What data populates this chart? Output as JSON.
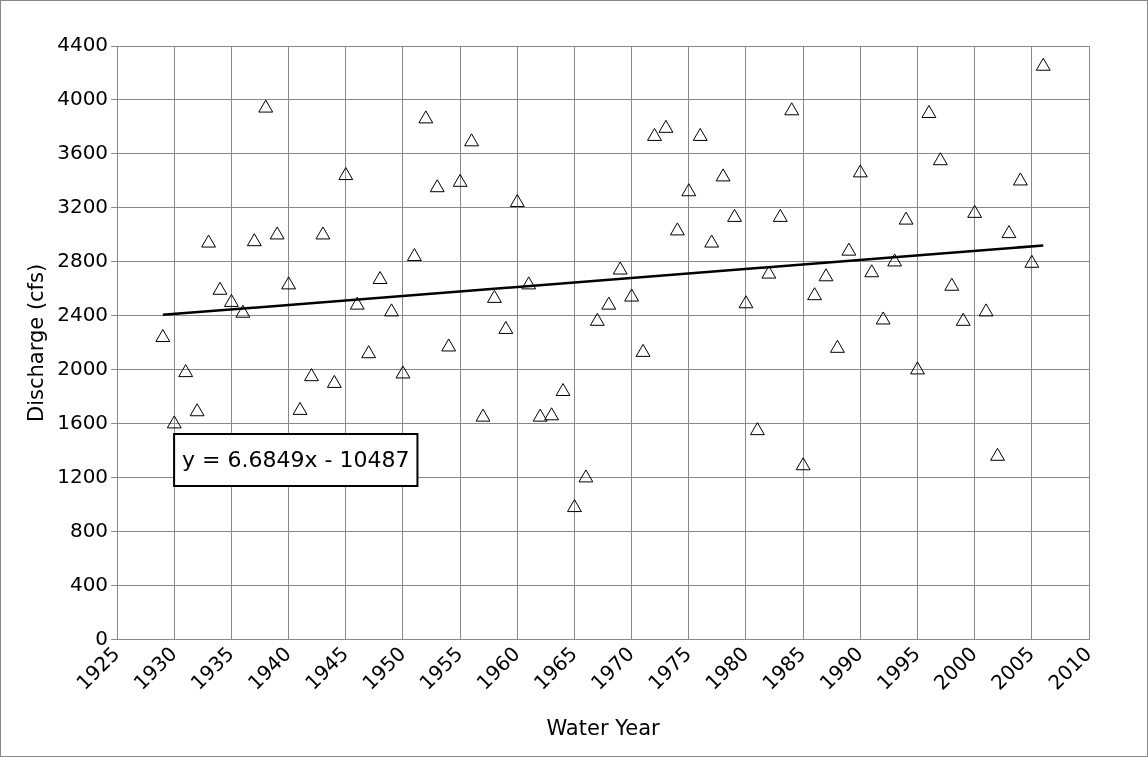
{
  "chart_data": {
    "type": "scatter",
    "xlabel": "Water Year",
    "ylabel": "Discharge (cfs)",
    "xlim": [
      1925,
      2010
    ],
    "xticks": [
      1925,
      1930,
      1935,
      1940,
      1945,
      1950,
      1955,
      1960,
      1965,
      1970,
      1975,
      1980,
      1985,
      1990,
      1995,
      2000,
      2005,
      2010
    ],
    "ylim": [
      0,
      4400
    ],
    "yticks": [
      0,
      400,
      800,
      1200,
      1600,
      2000,
      2400,
      2800,
      3200,
      3600,
      4000,
      4400
    ],
    "grid": true,
    "legend": false,
    "marker": "triangle",
    "annotations": [
      "y = 6.6849x - 10487"
    ],
    "series": [
      {
        "color": "#000000",
        "x": [
          1929,
          1930,
          1931,
          1932,
          1933,
          1934,
          1935,
          1936,
          1937,
          1938,
          1939,
          1940,
          1941,
          1942,
          1943,
          1944,
          1945,
          1946,
          1947,
          1948,
          1949,
          1950,
          1951,
          1952,
          1953,
          1954,
          1955,
          1956,
          1957,
          1958,
          1959,
          1960,
          1961,
          1962,
          1963,
          1964,
          1965,
          1966,
          1967,
          1968,
          1969,
          1970,
          1971,
          1972,
          1973,
          1974,
          1975,
          1976,
          1977,
          1978,
          1979,
          1980,
          1981,
          1982,
          1983,
          1984,
          1985,
          1986,
          1987,
          1988,
          1989,
          1990,
          1991,
          1992,
          1993,
          1994,
          1995,
          1996,
          1997,
          1998,
          1999,
          2000,
          2001,
          2002,
          2003,
          2004,
          2005,
          2006
        ],
        "values": [
          2240,
          1600,
          1980,
          1690,
          2940,
          2590,
          2500,
          2420,
          2950,
          3940,
          3000,
          2630,
          1700,
          1950,
          3000,
          1900,
          3440,
          2480,
          2120,
          2670,
          2430,
          1970,
          2840,
          3860,
          3350,
          2170,
          3390,
          3690,
          1650,
          2530,
          2300,
          3240,
          2630,
          1650,
          1660,
          1840,
          980,
          1200,
          2360,
          2480,
          2740,
          2540,
          2130,
          3730,
          3790,
          3030,
          3320,
          3730,
          2940,
          3430,
          3130,
          2490,
          1550,
          2710,
          3130,
          3920,
          1290,
          2550,
          2690,
          2160,
          2880,
          3460,
          2720,
          2370,
          2800,
          3110,
          2000,
          3900,
          3550,
          2620,
          2360,
          3160,
          2430,
          1360,
          3010,
          3400,
          2790,
          4250
        ]
      },
      {
        "type": "line",
        "color": "#000000",
        "marker": "none",
        "x": [
          1929,
          2006
        ],
        "values": [
          2408,
          2922
        ]
      }
    ]
  }
}
